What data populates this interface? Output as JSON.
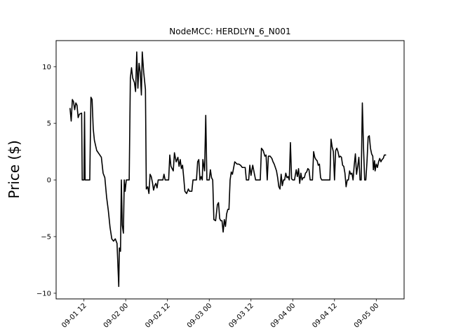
{
  "chart_data": {
    "type": "line",
    "title": "NodeMCC: HERDLYN_6_N001",
    "xlabel": "",
    "ylabel": "Price ($)",
    "x_axis": "datetime",
    "xlim": [
      "2022-09-01 04:00",
      "2022-09-05 08:00"
    ],
    "ylim": [
      -10.5,
      12.3
    ],
    "x_ticks": [
      {
        "value": "2022-09-01 12:00",
        "label": "09-01 12"
      },
      {
        "value": "2022-09-02 00:00",
        "label": "09-02 00"
      },
      {
        "value": "2022-09-02 12:00",
        "label": "09-02 12"
      },
      {
        "value": "2022-09-03 00:00",
        "label": "09-03 00"
      },
      {
        "value": "2022-09-03 12:00",
        "label": "09-03 12"
      },
      {
        "value": "2022-09-04 00:00",
        "label": "09-04 00"
      },
      {
        "value": "2022-09-04 12:00",
        "label": "09-04 12"
      },
      {
        "value": "2022-09-05 00:00",
        "label": "09-05 00"
      }
    ],
    "y_ticks": [
      {
        "value": -10,
        "label": "−10"
      },
      {
        "value": -5,
        "label": "−5"
      },
      {
        "value": 0,
        "label": "0"
      },
      {
        "value": 5,
        "label": "5"
      },
      {
        "value": 10,
        "label": "10"
      }
    ],
    "grid": false,
    "legend": "none",
    "series": [
      {
        "color": "#000000",
        "points": [
          [
            "2022-09-01 08:00",
            6.3
          ],
          [
            "2022-09-01 08:20",
            5.2
          ],
          [
            "2022-09-01 08:40",
            7.1
          ],
          [
            "2022-09-01 09:00",
            6.9
          ],
          [
            "2022-09-01 09:20",
            6.2
          ],
          [
            "2022-09-01 09:40",
            6.8
          ],
          [
            "2022-09-01 10:00",
            6.6
          ],
          [
            "2022-09-01 10:20",
            5.5
          ],
          [
            "2022-09-01 10:40",
            5.8
          ],
          [
            "2022-09-01 11:20",
            5.9
          ],
          [
            "2022-09-01 11:30",
            0.0
          ],
          [
            "2022-09-01 12:00",
            0.0
          ],
          [
            "2022-09-01 12:10",
            6.0
          ],
          [
            "2022-09-01 12:20",
            0.0
          ],
          [
            "2022-09-01 13:40",
            0.0
          ],
          [
            "2022-09-01 14:00",
            7.3
          ],
          [
            "2022-09-01 14:20",
            7.1
          ],
          [
            "2022-09-01 14:40",
            4.5
          ],
          [
            "2022-09-01 15:00",
            3.5
          ],
          [
            "2022-09-01 15:40",
            2.6
          ],
          [
            "2022-09-01 16:20",
            2.3
          ],
          [
            "2022-09-01 17:00",
            2.0
          ],
          [
            "2022-09-01 17:30",
            0.6
          ],
          [
            "2022-09-01 18:00",
            0.2
          ],
          [
            "2022-09-01 18:30",
            -1.5
          ],
          [
            "2022-09-01 19:00",
            -2.7
          ],
          [
            "2022-09-01 19:30",
            -4.2
          ],
          [
            "2022-09-01 20:00",
            -5.2
          ],
          [
            "2022-09-01 20:30",
            -5.4
          ],
          [
            "2022-09-01 21:00",
            -5.2
          ],
          [
            "2022-09-01 21:30",
            -5.6
          ],
          [
            "2022-09-01 22:00",
            -9.4
          ],
          [
            "2022-09-01 22:10",
            -6.0
          ],
          [
            "2022-09-01 22:30",
            -6.3
          ],
          [
            "2022-09-01 22:45",
            0.0
          ],
          [
            "2022-09-01 23:00",
            -4.0
          ],
          [
            "2022-09-01 23:20",
            -4.7
          ],
          [
            "2022-09-01 23:35",
            0.0
          ],
          [
            "2022-09-01 23:50",
            -1.0
          ],
          [
            "2022-09-02 00:10",
            0.0
          ],
          [
            "2022-09-02 01:00",
            0.0
          ],
          [
            "2022-09-02 01:20",
            9.0
          ],
          [
            "2022-09-02 01:40",
            9.9
          ],
          [
            "2022-09-02 02:00",
            9.0
          ],
          [
            "2022-09-02 02:30",
            8.6
          ],
          [
            "2022-09-02 02:50",
            7.8
          ],
          [
            "2022-09-02 03:10",
            11.3
          ],
          [
            "2022-09-02 03:30",
            8.1
          ],
          [
            "2022-09-02 03:50",
            10.3
          ],
          [
            "2022-09-02 04:10",
            9.5
          ],
          [
            "2022-09-02 04:30",
            7.5
          ],
          [
            "2022-09-02 04:45",
            11.3
          ],
          [
            "2022-09-02 05:10",
            9.5
          ],
          [
            "2022-09-02 05:40",
            8.0
          ],
          [
            "2022-09-02 05:55",
            -0.8
          ],
          [
            "2022-09-02 06:20",
            -0.6
          ],
          [
            "2022-09-02 06:40",
            -1.2
          ],
          [
            "2022-09-02 07:00",
            0.5
          ],
          [
            "2022-09-02 07:20",
            0.3
          ],
          [
            "2022-09-02 07:40",
            -0.2
          ],
          [
            "2022-09-02 08:00",
            -0.9
          ],
          [
            "2022-09-02 08:20",
            -0.5
          ],
          [
            "2022-09-02 08:40",
            -0.3
          ],
          [
            "2022-09-02 09:00",
            -0.7
          ],
          [
            "2022-09-02 09:20",
            0.0
          ],
          [
            "2022-09-02 10:40",
            0.0
          ],
          [
            "2022-09-02 11:00",
            0.5
          ],
          [
            "2022-09-02 11:20",
            0.0
          ],
          [
            "2022-09-02 12:20",
            0.0
          ],
          [
            "2022-09-02 12:40",
            2.2
          ],
          [
            "2022-09-02 13:00",
            1.2
          ],
          [
            "2022-09-02 13:40",
            0.8
          ],
          [
            "2022-09-02 14:00",
            2.4
          ],
          [
            "2022-09-02 14:30",
            1.6
          ],
          [
            "2022-09-02 15:00",
            2.0
          ],
          [
            "2022-09-02 15:20",
            1.2
          ],
          [
            "2022-09-02 15:40",
            1.8
          ],
          [
            "2022-09-02 16:00",
            1.0
          ],
          [
            "2022-09-02 16:20",
            1.3
          ],
          [
            "2022-09-02 16:40",
            0.2
          ],
          [
            "2022-09-02 17:00",
            -1.0
          ],
          [
            "2022-09-02 17:30",
            -1.2
          ],
          [
            "2022-09-02 18:00",
            -0.8
          ],
          [
            "2022-09-02 18:20",
            -1.0
          ],
          [
            "2022-09-02 19:00",
            -1.0
          ],
          [
            "2022-09-02 19:20",
            0.0
          ],
          [
            "2022-09-02 20:20",
            0.0
          ],
          [
            "2022-09-02 20:40",
            1.6
          ],
          [
            "2022-09-02 21:00",
            1.8
          ],
          [
            "2022-09-02 21:20",
            0.0
          ],
          [
            "2022-09-02 21:40",
            0.3
          ],
          [
            "2022-09-02 22:00",
            0.0
          ],
          [
            "2022-09-02 22:10",
            1.8
          ],
          [
            "2022-09-02 22:40",
            0.8
          ],
          [
            "2022-09-02 23:00",
            5.7
          ],
          [
            "2022-09-02 23:20",
            0.0
          ],
          [
            "2022-09-03 00:00",
            0.0
          ],
          [
            "2022-09-03 00:20",
            0.9
          ],
          [
            "2022-09-03 00:40",
            0.2
          ],
          [
            "2022-09-03 01:00",
            0.0
          ],
          [
            "2022-09-03 01:20",
            -3.5
          ],
          [
            "2022-09-03 01:50",
            -3.6
          ],
          [
            "2022-09-03 02:20",
            -2.2
          ],
          [
            "2022-09-03 02:40",
            -2.0
          ],
          [
            "2022-09-03 03:00",
            -3.4
          ],
          [
            "2022-09-03 03:20",
            -3.6
          ],
          [
            "2022-09-03 03:40",
            -3.6
          ],
          [
            "2022-09-03 04:00",
            -4.6
          ],
          [
            "2022-09-03 04:20",
            -3.5
          ],
          [
            "2022-09-03 04:40",
            -4.1
          ],
          [
            "2022-09-03 05:00",
            -3.0
          ],
          [
            "2022-09-03 05:20",
            -2.6
          ],
          [
            "2022-09-03 05:40",
            -2.6
          ],
          [
            "2022-09-03 06:00",
            0.0
          ],
          [
            "2022-09-03 06:20",
            0.7
          ],
          [
            "2022-09-03 06:40",
            0.5
          ],
          [
            "2022-09-03 07:20",
            1.6
          ],
          [
            "2022-09-03 08:00",
            1.4
          ],
          [
            "2022-09-03 08:30",
            1.4
          ],
          [
            "2022-09-03 09:00",
            1.3
          ],
          [
            "2022-09-03 09:30",
            1.1
          ],
          [
            "2022-09-03 10:00",
            1.1
          ],
          [
            "2022-09-03 10:20",
            1.1
          ],
          [
            "2022-09-03 10:40",
            0.0
          ],
          [
            "2022-09-03 11:20",
            0.0
          ],
          [
            "2022-09-03 11:40",
            1.3
          ],
          [
            "2022-09-03 12:00",
            0.4
          ],
          [
            "2022-09-03 12:30",
            1.3
          ],
          [
            "2022-09-03 13:00",
            0.5
          ],
          [
            "2022-09-03 13:20",
            0.0
          ],
          [
            "2022-09-03 14:40",
            0.0
          ],
          [
            "2022-09-03 15:00",
            2.8
          ],
          [
            "2022-09-03 15:30",
            2.6
          ],
          [
            "2022-09-03 16:00",
            2.1
          ],
          [
            "2022-09-03 16:20",
            2.2
          ],
          [
            "2022-09-03 16:40",
            0.0
          ],
          [
            "2022-09-03 17:00",
            2.1
          ],
          [
            "2022-09-03 17:30",
            2.1
          ],
          [
            "2022-09-03 18:00",
            1.9
          ],
          [
            "2022-09-03 18:20",
            1.6
          ],
          [
            "2022-09-03 18:40",
            1.4
          ],
          [
            "2022-09-03 19:00",
            1.1
          ],
          [
            "2022-09-03 19:20",
            0.8
          ],
          [
            "2022-09-03 19:40",
            0.2
          ],
          [
            "2022-09-03 20:00",
            -0.6
          ],
          [
            "2022-09-03 20:20",
            -0.8
          ],
          [
            "2022-09-03 20:40",
            0.5
          ],
          [
            "2022-09-03 21:00",
            -0.5
          ],
          [
            "2022-09-03 21:20",
            0.0
          ],
          [
            "2022-09-03 21:40",
            0.0
          ],
          [
            "2022-09-03 22:00",
            0.6
          ],
          [
            "2022-09-03 22:20",
            0.2
          ],
          [
            "2022-09-03 22:40",
            0.3
          ],
          [
            "2022-09-03 23:00",
            0.0
          ],
          [
            "2022-09-03 23:20",
            3.3
          ],
          [
            "2022-09-03 23:40",
            0.1
          ],
          [
            "2022-09-04 00:00",
            0.0
          ],
          [
            "2022-09-04 00:30",
            0.0
          ],
          [
            "2022-09-04 01:00",
            0.9
          ],
          [
            "2022-09-04 01:20",
            0.3
          ],
          [
            "2022-09-04 01:40",
            1.0
          ],
          [
            "2022-09-04 02:00",
            -0.3
          ],
          [
            "2022-09-04 02:20",
            0.6
          ],
          [
            "2022-09-04 02:40",
            0.0
          ],
          [
            "2022-09-04 03:00",
            0.2
          ],
          [
            "2022-09-04 03:20",
            0.2
          ],
          [
            "2022-09-04 03:40",
            0.6
          ],
          [
            "2022-09-04 04:00",
            0.7
          ],
          [
            "2022-09-04 04:20",
            1.0
          ],
          [
            "2022-09-04 04:40",
            0.9
          ],
          [
            "2022-09-04 05:00",
            0.0
          ],
          [
            "2022-09-04 05:40",
            0.0
          ],
          [
            "2022-09-04 06:00",
            2.5
          ],
          [
            "2022-09-04 06:20",
            2.0
          ],
          [
            "2022-09-04 06:40",
            1.8
          ],
          [
            "2022-09-04 07:00",
            1.7
          ],
          [
            "2022-09-04 07:20",
            1.3
          ],
          [
            "2022-09-04 07:40",
            1.4
          ],
          [
            "2022-09-04 08:00",
            0.2
          ],
          [
            "2022-09-04 08:20",
            0.0
          ],
          [
            "2022-09-04 10:40",
            0.0
          ],
          [
            "2022-09-04 11:00",
            3.6
          ],
          [
            "2022-09-04 11:20",
            2.9
          ],
          [
            "2022-09-04 11:40",
            2.5
          ],
          [
            "2022-09-04 12:00",
            0.0
          ],
          [
            "2022-09-04 12:20",
            2.6
          ],
          [
            "2022-09-04 12:40",
            2.8
          ],
          [
            "2022-09-04 13:00",
            2.5
          ],
          [
            "2022-09-04 13:20",
            2.0
          ],
          [
            "2022-09-04 13:40",
            2.1
          ],
          [
            "2022-09-04 14:00",
            2.0
          ],
          [
            "2022-09-04 14:20",
            1.3
          ],
          [
            "2022-09-04 14:40",
            1.2
          ],
          [
            "2022-09-04 15:00",
            0.6
          ],
          [
            "2022-09-04 15:20",
            -0.6
          ],
          [
            "2022-09-04 15:40",
            0.0
          ],
          [
            "2022-09-04 16:00",
            0.0
          ],
          [
            "2022-09-04 16:20",
            0.8
          ],
          [
            "2022-09-04 16:40",
            0.5
          ],
          [
            "2022-09-04 17:00",
            0.6
          ],
          [
            "2022-09-04 17:20",
            0.0
          ],
          [
            "2022-09-04 17:40",
            1.3
          ],
          [
            "2022-09-04 18:00",
            2.3
          ],
          [
            "2022-09-04 18:20",
            0.5
          ],
          [
            "2022-09-04 18:40",
            1.2
          ],
          [
            "2022-09-04 19:00",
            2.0
          ],
          [
            "2022-09-04 19:20",
            0.0
          ],
          [
            "2022-09-04 19:40",
            0.0
          ],
          [
            "2022-09-04 20:00",
            6.8
          ],
          [
            "2022-09-04 20:20",
            2.9
          ],
          [
            "2022-09-04 20:40",
            0.0
          ],
          [
            "2022-09-04 21:00",
            0.0
          ],
          [
            "2022-09-04 21:20",
            1.6
          ],
          [
            "2022-09-04 21:40",
            3.8
          ],
          [
            "2022-09-04 22:00",
            3.9
          ],
          [
            "2022-09-04 22:20",
            2.8
          ],
          [
            "2022-09-04 22:40",
            2.3
          ],
          [
            "2022-09-04 23:00",
            2.1
          ],
          [
            "2022-09-04 23:10",
            0.9
          ],
          [
            "2022-09-04 23:30",
            1.7
          ],
          [
            "2022-09-04 23:40",
            0.8
          ],
          [
            "2022-09-05 00:00",
            1.4
          ],
          [
            "2022-09-05 00:20",
            1.1
          ],
          [
            "2022-09-05 00:40",
            1.6
          ],
          [
            "2022-09-05 01:00",
            1.9
          ],
          [
            "2022-09-05 01:20",
            1.6
          ],
          [
            "2022-09-05 01:40",
            1.8
          ],
          [
            "2022-09-05 02:00",
            1.9
          ],
          [
            "2022-09-05 02:20",
            2.2
          ],
          [
            "2022-09-05 02:40",
            2.2
          ]
        ]
      }
    ]
  }
}
